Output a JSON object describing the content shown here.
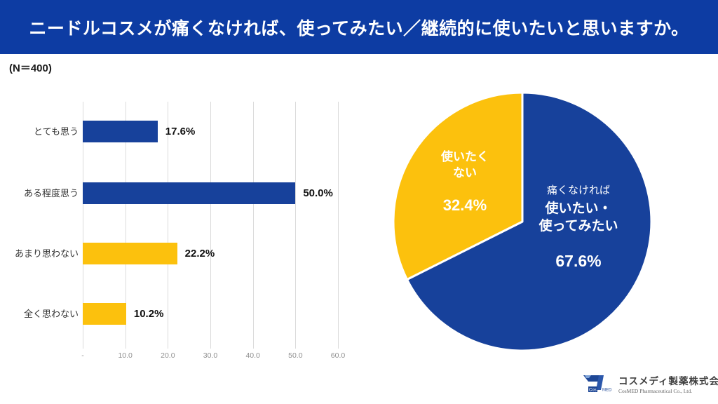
{
  "header": {
    "title": "ニードルコスメが痛くなければ、使ってみたい／継続的に使いたいと思いますか。",
    "bg_color": "#0D3CA3",
    "text_color": "#FFFFFF"
  },
  "sample_size": "(N＝400)",
  "colors": {
    "brand_blue": "#17419B",
    "brand_yellow": "#FCC10D",
    "gridline": "#DBDBDB",
    "tick_text": "#8F8F8F"
  },
  "chart_data": [
    {
      "type": "bar",
      "orientation": "horizontal",
      "title": "",
      "categories": [
        "とても思う",
        "ある程度思う",
        "あまり思わない",
        "全く思わない"
      ],
      "values": [
        17.6,
        50.0,
        22.2,
        10.2
      ],
      "value_labels": [
        "17.6%",
        "50.0%",
        "22.2%",
        "10.2%"
      ],
      "bar_colors": [
        "#17419B",
        "#17419B",
        "#FCC10D",
        "#FCC10D"
      ],
      "xlim": [
        0,
        60
      ],
      "x_ticks": [
        "-",
        "10.0",
        "20.0",
        "30.0",
        "40.0",
        "50.0",
        "60.0"
      ],
      "grid": true,
      "legend": "none"
    },
    {
      "type": "pie",
      "start_angle_deg": 0,
      "direction": "clockwise",
      "slices": [
        {
          "sublabel": "痛くなければ",
          "label_lines": [
            "使いたい・",
            "使ってみたい"
          ],
          "value": 67.6,
          "value_label": "67.6%",
          "color": "#17419B"
        },
        {
          "sublabel": "",
          "label_lines": [
            "使いたく",
            "ない"
          ],
          "value": 32.4,
          "value_label": "32.4%",
          "color": "#FCC10D"
        }
      ]
    }
  ],
  "footer": {
    "logo_text_cos": "Cos",
    "logo_text_med": "MED",
    "company_name_ja": "コスメディ製薬株式会社",
    "company_name_en": "CosMED Pharmaceutical Co., Ltd."
  }
}
